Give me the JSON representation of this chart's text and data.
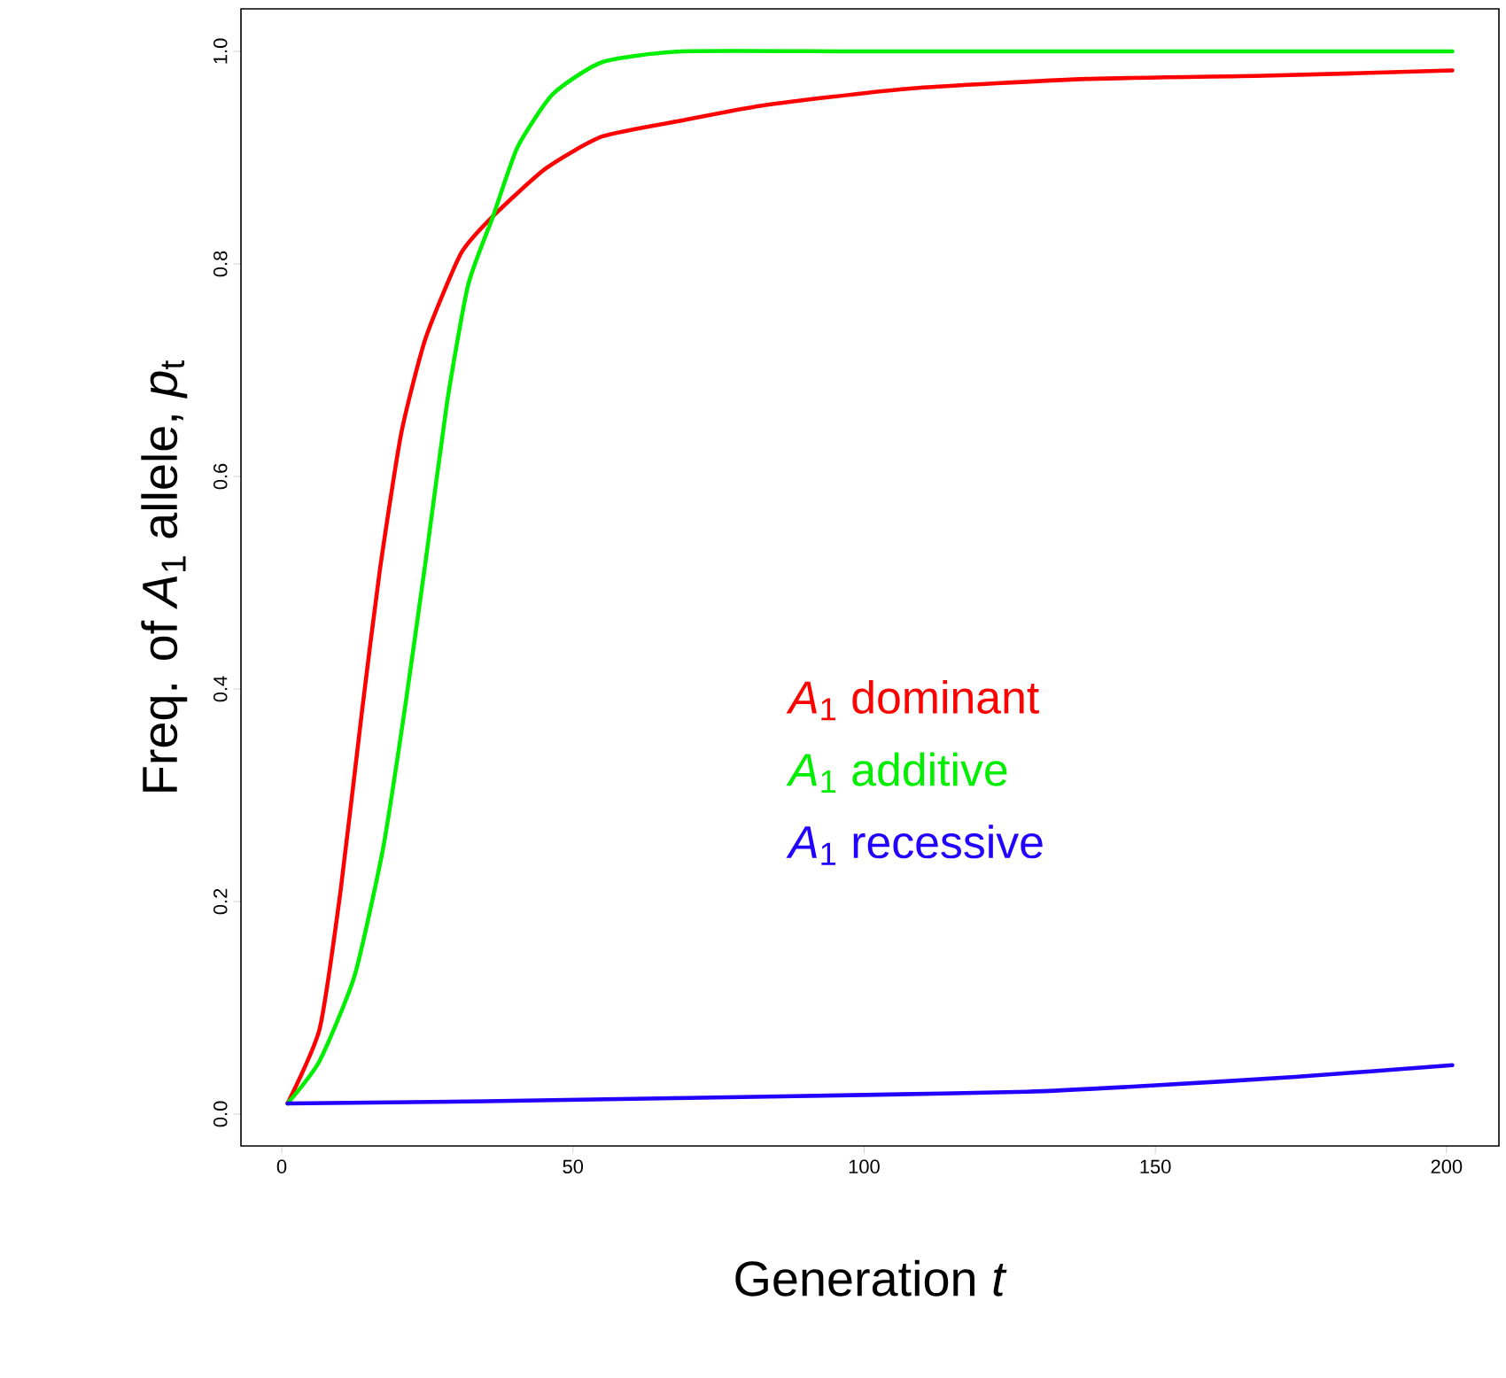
{
  "chart_data": {
    "type": "line",
    "xlabel": "Generation *t*",
    "ylabel": "Freq. of *A*$_{1}$ allele, *p*$_{t}$",
    "xlim": [
      -7,
      209
    ],
    "ylim": [
      -0.03,
      1.04
    ],
    "xticks": [
      0,
      50,
      100,
      150,
      200
    ],
    "yticks": [
      {
        "value": 0,
        "label": "0.0"
      },
      0.2,
      0.4,
      0.6,
      0.8,
      {
        "value": 1,
        "label": "1.0"
      }
    ],
    "grid": false,
    "legend": "bottom right",
    "line_style": "solid",
    "marker": "none",
    "series": [
      {
        "name": "*A*$_{1}$ dominant",
        "color": "#ff0000",
        "x": [
          1,
          6.5,
          10.1,
          13.8,
          16.8,
          20.5,
          24.7,
          30.8,
          36.3,
          45.4,
          55.1,
          68.8,
          82.5,
          107.8,
          138.2,
          168.6,
          201
        ],
        "values": [
          0.01,
          0.08,
          0.21,
          0.38,
          0.51,
          0.64,
          0.73,
          0.81,
          0.845,
          0.89,
          0.92,
          0.935,
          0.949,
          0.965,
          0.974,
          0.977,
          0.982
        ]
      },
      {
        "name": "*A*$_{1}$ additive",
        "color": "#00ee00",
        "x": [
          1,
          6.5,
          12.5,
          17.4,
          21.1,
          24.7,
          28.4,
          32,
          36.3,
          40.5,
          46.6,
          55.1,
          68.8,
          100,
          150,
          201
        ],
        "values": [
          0.01,
          0.05,
          0.13,
          0.25,
          0.38,
          0.52,
          0.67,
          0.78,
          0.845,
          0.91,
          0.96,
          0.99,
          1.0,
          1.0,
          1.0,
          1.0
        ]
      },
      {
        "name": "*A*$_{1}$ recessive",
        "color": "#2200ff",
        "x": [
          1,
          35,
          67.3,
          100,
          128,
          150,
          174,
          201
        ],
        "values": [
          0.01,
          0.012,
          0.015,
          0.018,
          0.021,
          0.027,
          0.035,
          0.046
        ]
      }
    ]
  }
}
